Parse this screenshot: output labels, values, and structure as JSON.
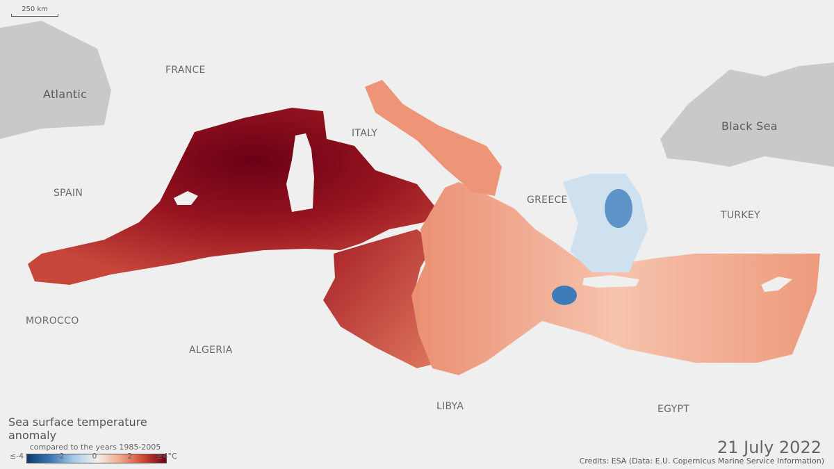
{
  "scale_bar": {
    "label": "250 km"
  },
  "labels": {
    "atlantic": "Atlantic",
    "france": "FRANCE",
    "spain": "SPAIN",
    "italy": "ITALY",
    "greece": "GREECE",
    "turkey": "TURKEY",
    "black_sea": "Black Sea",
    "morocco": "MOROCCO",
    "algeria": "ALGERIA",
    "libya": "LIBYA",
    "egypt": "EGYPT"
  },
  "legend": {
    "title": "Sea surface temperature anomaly",
    "subtitle": "compared to the years 1985-2005",
    "ticks": [
      "≤-4",
      "-2",
      "0",
      "2",
      "≥4°C"
    ],
    "colors": [
      "#0d3a6e",
      "#3b78b5",
      "#f3f1ef",
      "#cf4a36",
      "#6a0016"
    ]
  },
  "date": "21 July 2022",
  "credits": "Credits: ESA (Data: E.U. Copernicus Marine Service Information)"
}
